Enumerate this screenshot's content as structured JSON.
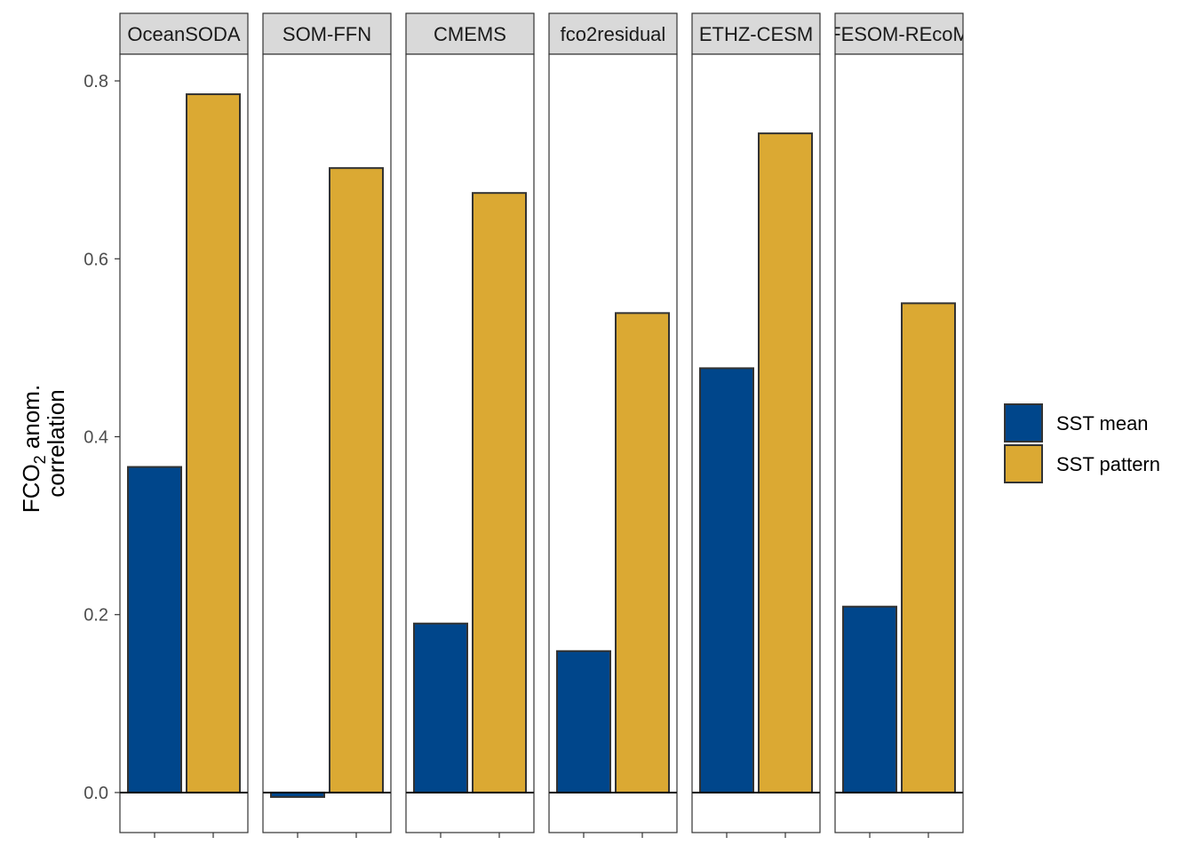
{
  "chart_data": {
    "type": "bar",
    "facets": [
      "OceanSODA",
      "SOM-FFN",
      "CMEMS",
      "fco2residual",
      "ETHZ-CESM",
      "FESOM-REcoM"
    ],
    "series": [
      {
        "name": "SST mean",
        "color": "#00468B",
        "values": [
          0.366,
          -0.005,
          0.19,
          0.159,
          0.477,
          0.209
        ]
      },
      {
        "name": "SST pattern",
        "color": "#DBA933",
        "values": [
          0.785,
          0.702,
          0.674,
          0.539,
          0.741,
          0.55
        ]
      }
    ],
    "y_ticks": [
      "0.0",
      "0.2",
      "0.4",
      "0.6",
      "0.8"
    ],
    "ylim": [
      -0.045,
      0.83
    ],
    "ylabel_line1_main": "FCO",
    "ylabel_line1_sub": "2",
    "ylabel_line1_rest": " anom.",
    "ylabel_line2": "correlation",
    "legend_position": "right",
    "grid": false,
    "zero_line": true
  }
}
